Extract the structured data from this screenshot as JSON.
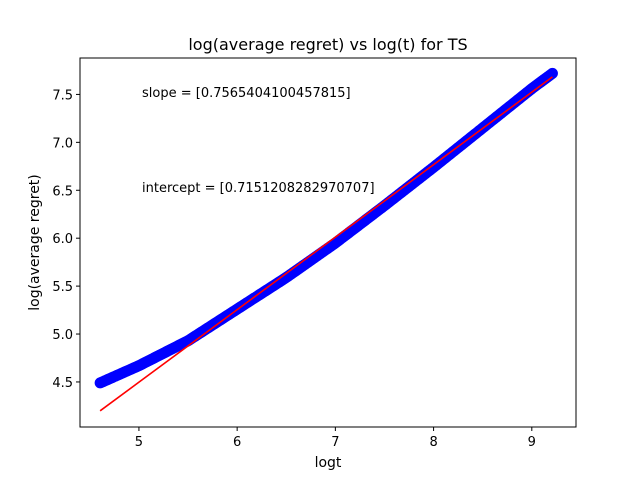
{
  "chart_data": {
    "type": "scatter",
    "title": "log(average regret) vs log(t) for TS",
    "xlabel": "logt",
    "ylabel": "log(average regret)",
    "xlim": [
      4.4,
      9.45
    ],
    "ylim": [
      4.03,
      7.88
    ],
    "x_ticks": [
      5,
      6,
      7,
      8,
      9
    ],
    "y_ticks": [
      4.5,
      5.0,
      5.5,
      6.0,
      6.5,
      7.0,
      7.5
    ],
    "grid": false,
    "legend": "none",
    "colors": {
      "data": "#0000ff",
      "fit": "#ff0000",
      "axes": "#000000"
    },
    "series": [
      {
        "kind": "scatter",
        "x_range": [
          4.605,
          9.21
        ],
        "points": [
          [
            4.605,
            4.49
          ],
          [
            5.0,
            4.67
          ],
          [
            5.5,
            4.93
          ],
          [
            6.0,
            5.26
          ],
          [
            6.5,
            5.59
          ],
          [
            7.0,
            5.95
          ],
          [
            7.5,
            6.34
          ],
          [
            8.0,
            6.74
          ],
          [
            8.5,
            7.15
          ],
          [
            9.0,
            7.56
          ],
          [
            9.21,
            7.72
          ]
        ]
      },
      {
        "kind": "line",
        "slope": 0.7565404100457815,
        "intercept": 0.7151208282970707,
        "x_range": [
          4.605,
          9.21
        ]
      }
    ],
    "annotations": [
      {
        "text": "slope = [0.7565404100457815]",
        "x": 5.0,
        "y": 7.52
      },
      {
        "text": "intercept = [0.7151208282970707]",
        "x": 5.0,
        "y": 6.52
      }
    ]
  }
}
